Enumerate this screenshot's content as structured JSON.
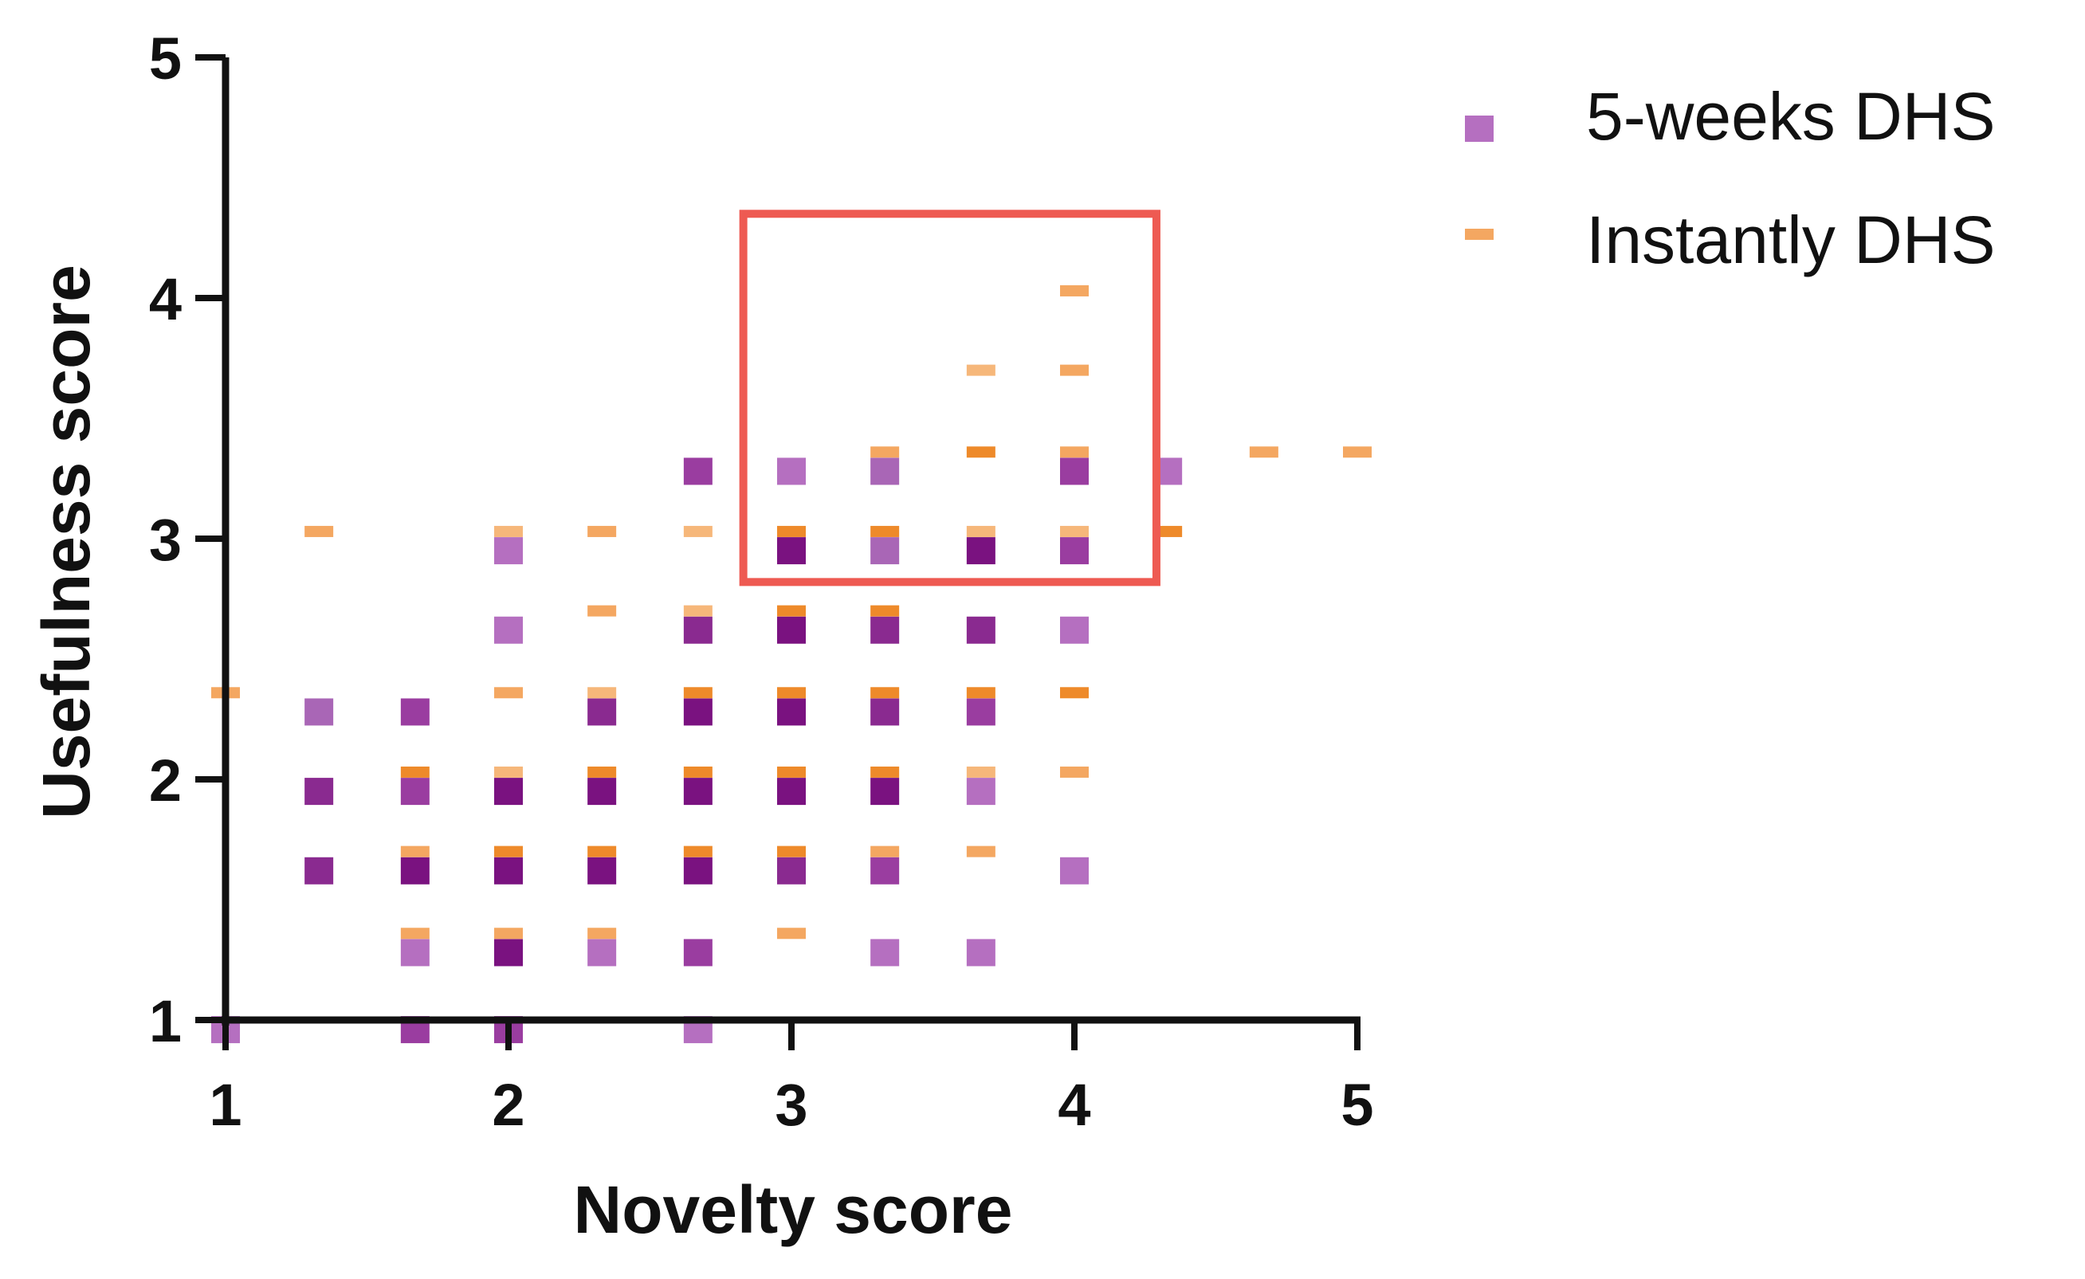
{
  "chart_data": {
    "type": "scatter",
    "xlabel": "Novelty score",
    "ylabel": "Usefulness score",
    "xlim": [
      1,
      5
    ],
    "ylim": [
      1,
      5
    ],
    "x_ticks": [
      "1",
      "2",
      "3",
      "4",
      "5"
    ],
    "y_ticks": [
      "1",
      "2",
      "3",
      "4",
      "5"
    ],
    "grid": false,
    "legend_position": "top-right",
    "highlight_box": {
      "x_range": [
        2.83,
        4.29
      ],
      "y_range": [
        2.82,
        4.35
      ],
      "color": "#ee5a52"
    },
    "series": [
      {
        "name": "5-weeks DHS",
        "marker": "square",
        "color": "#b56fc0",
        "points": [
          {
            "x": 1.0,
            "y": 0.96,
            "c": "#b56fc0"
          },
          {
            "x": 1.33,
            "y": 2.28,
            "c": "#a966b6"
          },
          {
            "x": 1.33,
            "y": 1.95,
            "c": "#8a2a90"
          },
          {
            "x": 1.33,
            "y": 1.62,
            "c": "#8a2a90"
          },
          {
            "x": 1.67,
            "y": 2.28,
            "c": "#9a3da0"
          },
          {
            "x": 1.67,
            "y": 1.95,
            "c": "#9a3da0"
          },
          {
            "x": 1.67,
            "y": 1.62,
            "c": "#7a1280"
          },
          {
            "x": 1.67,
            "y": 1.28,
            "c": "#b56fc0"
          },
          {
            "x": 1.67,
            "y": 0.96,
            "c": "#9a3da0"
          },
          {
            "x": 2.0,
            "y": 2.95,
            "c": "#b56fc0"
          },
          {
            "x": 2.0,
            "y": 2.62,
            "c": "#b56fc0"
          },
          {
            "x": 2.0,
            "y": 1.95,
            "c": "#7a1280"
          },
          {
            "x": 2.0,
            "y": 1.62,
            "c": "#7a1280"
          },
          {
            "x": 2.0,
            "y": 1.28,
            "c": "#7a1280"
          },
          {
            "x": 2.0,
            "y": 0.96,
            "c": "#9a3da0"
          },
          {
            "x": 2.33,
            "y": 2.28,
            "c": "#8a2a90"
          },
          {
            "x": 2.33,
            "y": 1.95,
            "c": "#7a1280"
          },
          {
            "x": 2.33,
            "y": 1.62,
            "c": "#7a1280"
          },
          {
            "x": 2.33,
            "y": 1.28,
            "c": "#b56fc0"
          },
          {
            "x": 2.67,
            "y": 3.28,
            "c": "#9a3da0"
          },
          {
            "x": 2.67,
            "y": 2.62,
            "c": "#8a2a90"
          },
          {
            "x": 2.67,
            "y": 2.28,
            "c": "#7a1280"
          },
          {
            "x": 2.67,
            "y": 1.95,
            "c": "#7a1280"
          },
          {
            "x": 2.67,
            "y": 1.62,
            "c": "#7a1280"
          },
          {
            "x": 2.67,
            "y": 1.28,
            "c": "#9a3da0"
          },
          {
            "x": 2.67,
            "y": 0.96,
            "c": "#b56fc0"
          },
          {
            "x": 3.0,
            "y": 3.28,
            "c": "#b56fc0"
          },
          {
            "x": 3.0,
            "y": 2.95,
            "c": "#7a1280"
          },
          {
            "x": 3.0,
            "y": 2.62,
            "c": "#7a1280"
          },
          {
            "x": 3.0,
            "y": 2.28,
            "c": "#7a1280"
          },
          {
            "x": 3.0,
            "y": 1.95,
            "c": "#7a1280"
          },
          {
            "x": 3.0,
            "y": 1.62,
            "c": "#8a2a90"
          },
          {
            "x": 3.33,
            "y": 3.28,
            "c": "#a966b6"
          },
          {
            "x": 3.33,
            "y": 2.95,
            "c": "#a966b6"
          },
          {
            "x": 3.33,
            "y": 2.62,
            "c": "#8a2a90"
          },
          {
            "x": 3.33,
            "y": 2.28,
            "c": "#8a2a90"
          },
          {
            "x": 3.33,
            "y": 1.95,
            "c": "#7a1280"
          },
          {
            "x": 3.33,
            "y": 1.62,
            "c": "#9a3da0"
          },
          {
            "x": 3.33,
            "y": 1.28,
            "c": "#b56fc0"
          },
          {
            "x": 3.67,
            "y": 2.95,
            "c": "#7a1280"
          },
          {
            "x": 3.67,
            "y": 2.62,
            "c": "#8a2a90"
          },
          {
            "x": 3.67,
            "y": 2.28,
            "c": "#9a3da0"
          },
          {
            "x": 3.67,
            "y": 1.95,
            "c": "#b56fc0"
          },
          {
            "x": 3.67,
            "y": 1.28,
            "c": "#b56fc0"
          },
          {
            "x": 4.0,
            "y": 3.28,
            "c": "#9a3da0"
          },
          {
            "x": 4.0,
            "y": 2.95,
            "c": "#9a3da0"
          },
          {
            "x": 4.0,
            "y": 2.62,
            "c": "#b56fc0"
          },
          {
            "x": 4.0,
            "y": 1.62,
            "c": "#b56fc0"
          },
          {
            "x": 4.33,
            "y": 3.28,
            "c": "#b56fc0"
          }
        ]
      },
      {
        "name": "Instantly DHS",
        "marker": "dash",
        "color": "#f4a761",
        "points": [
          {
            "x": 1.0,
            "y": 2.36,
            "c": "#f4a761"
          },
          {
            "x": 1.33,
            "y": 3.03,
            "c": "#f4a761"
          },
          {
            "x": 1.67,
            "y": 2.03,
            "c": "#ee8a2a"
          },
          {
            "x": 1.67,
            "y": 1.7,
            "c": "#f4a761"
          },
          {
            "x": 1.67,
            "y": 1.36,
            "c": "#f4a761"
          },
          {
            "x": 2.0,
            "y": 3.03,
            "c": "#f6b77a"
          },
          {
            "x": 2.0,
            "y": 2.36,
            "c": "#f4a761"
          },
          {
            "x": 2.0,
            "y": 2.03,
            "c": "#f6b77a"
          },
          {
            "x": 2.0,
            "y": 1.7,
            "c": "#ee8a2a"
          },
          {
            "x": 2.0,
            "y": 1.36,
            "c": "#f4a761"
          },
          {
            "x": 2.33,
            "y": 3.03,
            "c": "#f4a761"
          },
          {
            "x": 2.33,
            "y": 2.7,
            "c": "#f4a761"
          },
          {
            "x": 2.33,
            "y": 2.36,
            "c": "#f6b77a"
          },
          {
            "x": 2.33,
            "y": 2.03,
            "c": "#ee8a2a"
          },
          {
            "x": 2.33,
            "y": 1.7,
            "c": "#ee8a2a"
          },
          {
            "x": 2.33,
            "y": 1.36,
            "c": "#f4a761"
          },
          {
            "x": 2.67,
            "y": 3.03,
            "c": "#f6b77a"
          },
          {
            "x": 2.67,
            "y": 2.7,
            "c": "#f6b77a"
          },
          {
            "x": 2.67,
            "y": 2.36,
            "c": "#ee8a2a"
          },
          {
            "x": 2.67,
            "y": 2.03,
            "c": "#ee8a2a"
          },
          {
            "x": 2.67,
            "y": 1.7,
            "c": "#ee8a2a"
          },
          {
            "x": 3.0,
            "y": 3.03,
            "c": "#ee8a2a"
          },
          {
            "x": 3.0,
            "y": 2.7,
            "c": "#ee8a2a"
          },
          {
            "x": 3.0,
            "y": 2.36,
            "c": "#ee8a2a"
          },
          {
            "x": 3.0,
            "y": 2.03,
            "c": "#ee8a2a"
          },
          {
            "x": 3.0,
            "y": 1.7,
            "c": "#ee8a2a"
          },
          {
            "x": 3.0,
            "y": 1.36,
            "c": "#f4a761"
          },
          {
            "x": 3.33,
            "y": 3.36,
            "c": "#f4a761"
          },
          {
            "x": 3.33,
            "y": 3.03,
            "c": "#ee8a2a"
          },
          {
            "x": 3.33,
            "y": 2.7,
            "c": "#ee8a2a"
          },
          {
            "x": 3.33,
            "y": 2.36,
            "c": "#ee8a2a"
          },
          {
            "x": 3.33,
            "y": 2.03,
            "c": "#ee8a2a"
          },
          {
            "x": 3.33,
            "y": 1.7,
            "c": "#f4a761"
          },
          {
            "x": 3.67,
            "y": 3.7,
            "c": "#f6b77a"
          },
          {
            "x": 3.67,
            "y": 3.36,
            "c": "#ee8a2a"
          },
          {
            "x": 3.67,
            "y": 3.03,
            "c": "#f6b77a"
          },
          {
            "x": 3.67,
            "y": 2.36,
            "c": "#ee8a2a"
          },
          {
            "x": 3.67,
            "y": 2.03,
            "c": "#f6b77a"
          },
          {
            "x": 3.67,
            "y": 1.7,
            "c": "#f4a761"
          },
          {
            "x": 4.0,
            "y": 4.03,
            "c": "#f4a761"
          },
          {
            "x": 4.0,
            "y": 3.7,
            "c": "#f4a761"
          },
          {
            "x": 4.0,
            "y": 3.36,
            "c": "#f4a761"
          },
          {
            "x": 4.0,
            "y": 3.03,
            "c": "#f6b77a"
          },
          {
            "x": 4.0,
            "y": 2.36,
            "c": "#ee8a2a"
          },
          {
            "x": 4.0,
            "y": 2.03,
            "c": "#f4a761"
          },
          {
            "x": 4.33,
            "y": 3.03,
            "c": "#ee8a2a"
          },
          {
            "x": 4.67,
            "y": 3.36,
            "c": "#f4a761"
          },
          {
            "x": 5.0,
            "y": 3.36,
            "c": "#f4a761"
          }
        ]
      }
    ]
  }
}
